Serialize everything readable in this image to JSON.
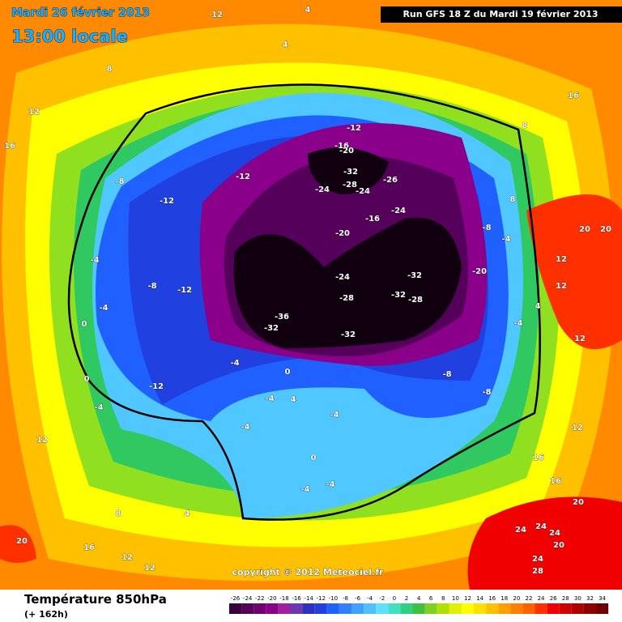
{
  "header": {
    "date": "Mardi 26 février 2013",
    "time": "13:00 locale",
    "run": "Run GFS 18 Z du Mardi 19 février 2013"
  },
  "footer": {
    "title": "Température 850hPa",
    "lead": "(+ 162h)",
    "copyright": "copyright © 2012 Meteociel.fr"
  },
  "scale": {
    "values": [
      -26,
      -24,
      -22,
      -20,
      -18,
      -16,
      -14,
      -12,
      -10,
      -8,
      -6,
      -4,
      -2,
      0,
      2,
      4,
      6,
      8,
      10,
      12,
      14,
      16,
      18,
      20,
      22,
      24,
      26,
      28,
      30,
      32,
      34
    ],
    "colors": [
      "#3a003a",
      "#55005a",
      "#700070",
      "#8a008a",
      "#a020a0",
      "#6a3ab0",
      "#3030c0",
      "#2040e0",
      "#2060ff",
      "#3080ff",
      "#40a0ff",
      "#50c0ff",
      "#60e0ff",
      "#40e0c0",
      "#30d080",
      "#40c040",
      "#80d020",
      "#b0e000",
      "#e0f000",
      "#ffff00",
      "#ffe000",
      "#ffc000",
      "#ffa000",
      "#ff8000",
      "#ff6000",
      "#ff3000",
      "#f00000",
      "#d00000",
      "#b00000",
      "#900000",
      "#700000"
    ]
  },
  "map": {
    "labels": [
      12,
      4,
      4,
      8,
      12,
      16,
      16,
      8,
      -12,
      -16,
      -20,
      -32,
      -28,
      -24,
      -26,
      -24,
      -24,
      -16,
      -20,
      -24,
      -32,
      -28,
      -32,
      -28,
      -20,
      -36,
      -32,
      -32,
      -8,
      -12,
      -12,
      -8,
      -4,
      -8,
      -12,
      -4,
      -4,
      0,
      0,
      -12,
      -4,
      -4,
      0,
      -4,
      4,
      -4,
      0,
      -4,
      -4,
      -8,
      -8,
      12,
      8,
      4,
      16,
      12,
      12,
      20,
      16,
      16,
      20,
      24,
      24,
      24,
      20,
      24,
      28,
      20,
      20,
      12,
      12,
      12,
      12,
      4,
      -4,
      8,
      -4
    ]
  }
}
